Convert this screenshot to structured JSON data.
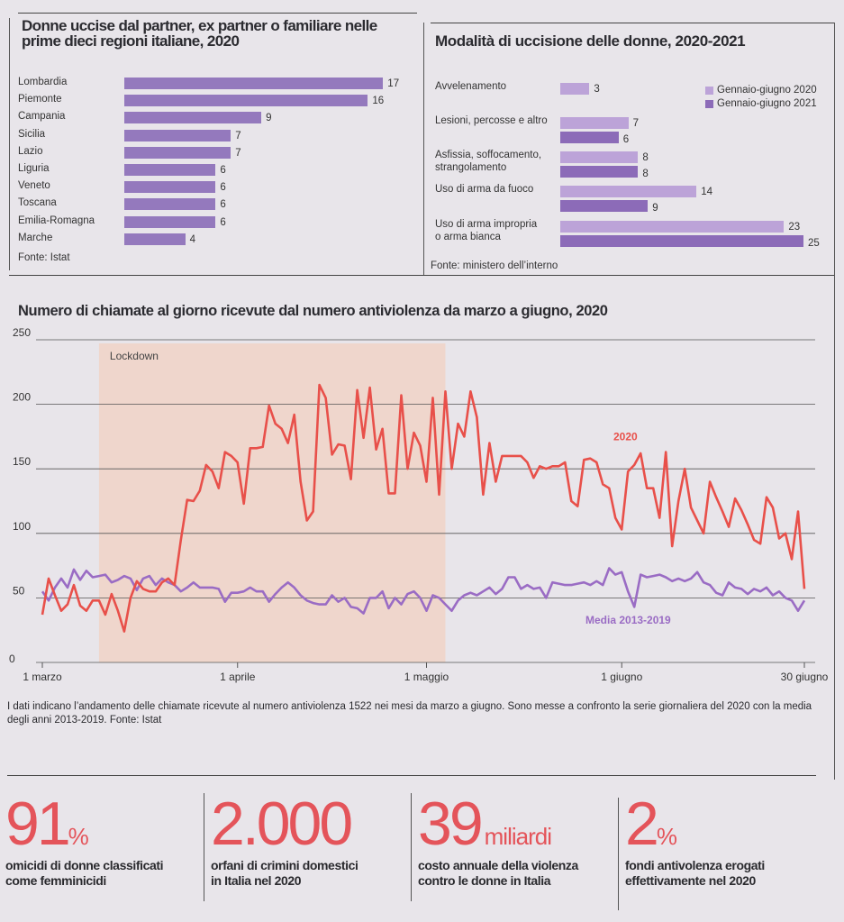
{
  "chart_data": [
    {
      "type": "bar",
      "orientation": "horizontal",
      "title": "Donne uccise dal partner, ex partner o familiare nelle prime dieci regioni italiane, 2020",
      "categories": [
        "Lombardia",
        "Piemonte",
        "Campania",
        "Sicilia",
        "Lazio",
        "Liguria",
        "Veneto",
        "Toscana",
        "Emilia-Romagna",
        "Marche"
      ],
      "values": [
        17,
        16,
        9,
        7,
        7,
        6,
        6,
        6,
        6,
        4
      ],
      "source": "Fonte: Istat",
      "color": "#9479bd"
    },
    {
      "type": "bar",
      "orientation": "horizontal",
      "title": "Modalità di uccisione delle donne, 2020-2021",
      "categories": [
        "Avvelenamento",
        "Lesioni, percosse e altro",
        "Asfissia, soffocamento, strangolamento",
        "Uso di arma da fuoco",
        "Uso di arma impropria o arma bianca"
      ],
      "category_lines": [
        [
          "Avvelenamento"
        ],
        [
          "Lesioni, percosse e altro"
        ],
        [
          "Asfissia, soffocamento,",
          "strangolamento"
        ],
        [
          "Uso di arma da fuoco"
        ],
        [
          "Uso di arma impropria",
          "o arma bianca"
        ]
      ],
      "series": [
        {
          "name": "Gennaio-giugno 2020",
          "values": [
            3,
            7,
            8,
            14,
            23
          ],
          "color": "#bca3d8"
        },
        {
          "name": "Gennaio-giugno 2021",
          "values": [
            null,
            6,
            8,
            9,
            25
          ],
          "color": "#8c6bb8"
        }
      ],
      "legend": "top-right",
      "source": "Fonte: ministero dell’interno"
    },
    {
      "type": "line",
      "title": "Numero di chiamate al giorno ricevute dal numero antiviolenza da marzo a giugno, 2020",
      "ylim": [
        0,
        250
      ],
      "yticks": [
        0,
        50,
        100,
        150,
        200,
        250
      ],
      "grid": true,
      "xticks": [
        {
          "day": 0,
          "label": "1 marzo"
        },
        {
          "day": 31,
          "label": "1 aprile"
        },
        {
          "day": 61,
          "label": "1 maggio"
        },
        {
          "day": 92,
          "label": "1 giugno"
        },
        {
          "day": 121,
          "label": "30 giugno"
        }
      ],
      "shaded_region": {
        "label": "Lockdown",
        "from_day": 9,
        "to_day": 64,
        "color": "#efd6cc"
      },
      "series": [
        {
          "name": "2020",
          "color": "#e8504a",
          "values": [
            37,
            65,
            52,
            40,
            45,
            60,
            44,
            40,
            48,
            48,
            37,
            53,
            40,
            24,
            50,
            63,
            57,
            55,
            55,
            62,
            65,
            60,
            95,
            126,
            125,
            133,
            153,
            148,
            135,
            163,
            160,
            155,
            123,
            166,
            166,
            167,
            199,
            185,
            181,
            170,
            192,
            140,
            110,
            117,
            215,
            205,
            161,
            169,
            168,
            142,
            211,
            174,
            213,
            165,
            181,
            131,
            131,
            207,
            150,
            178,
            168,
            140,
            205,
            130,
            210,
            150,
            185,
            175,
            210,
            190,
            130,
            170,
            140,
            160,
            160,
            160,
            160,
            155,
            143,
            152,
            150,
            152,
            152,
            155,
            125,
            121,
            157,
            158,
            155,
            138,
            135,
            112,
            103,
            148,
            153,
            162,
            135,
            135,
            112,
            163,
            90,
            125,
            150,
            120,
            110,
            100,
            140,
            128,
            117,
            105,
            127,
            118,
            107,
            95,
            92,
            128,
            120,
            96,
            100,
            80,
            117,
            57
          ]
        },
        {
          "name": "Media 2013-2019",
          "color": "#9a6cc4",
          "values": [
            55,
            48,
            58,
            65,
            58,
            72,
            64,
            71,
            66,
            67,
            68,
            62,
            64,
            67,
            65,
            56,
            65,
            67,
            60,
            65,
            62,
            60,
            55,
            58,
            62,
            58,
            58,
            58,
            57,
            47,
            54,
            54,
            55,
            58,
            55,
            55,
            47,
            53,
            58,
            62,
            58,
            52,
            48,
            46,
            45,
            45,
            52,
            47,
            50,
            43,
            42,
            38,
            50,
            50,
            55,
            42,
            50,
            45,
            53,
            55,
            50,
            40,
            52,
            50,
            45,
            40,
            48,
            52,
            54,
            52,
            55,
            58,
            53,
            57,
            66,
            66,
            57,
            60,
            57,
            58,
            50,
            62,
            61,
            60,
            60,
            61,
            62,
            60,
            63,
            60,
            73,
            68,
            70,
            55,
            43,
            68,
            66,
            67,
            68,
            66,
            63,
            65,
            63,
            65,
            70,
            62,
            60,
            54,
            52,
            62,
            58,
            57,
            53,
            57,
            55,
            58,
            52,
            55,
            50,
            48,
            40,
            48
          ]
        }
      ],
      "note": "I dati indicano l’andamento delle chiamate ricevute al numero antiviolenza 1522 nei mesi da marzo a giugno. Sono messe a confronto la serie giornaliera del 2020 con la media degli anni 2013-2019.",
      "source": "Fonte: Istat"
    }
  ],
  "stats": [
    {
      "value": "91",
      "unit": "%",
      "caption_1": "omicidi di donne classificati",
      "caption_2": "come femminicidi"
    },
    {
      "value": "2.000",
      "unit": "",
      "caption_1": "orfani di crimini domestici",
      "caption_2": "in Italia nel 2020"
    },
    {
      "value": "39",
      "unit": "miliardi",
      "caption_1": "costo annuale della violenza",
      "caption_2": "contro le donne in Italia"
    },
    {
      "value": "2",
      "unit": "%",
      "caption_1": "fondi antivolenza erogati",
      "caption_2": "effettivamente nel 2020"
    }
  ]
}
